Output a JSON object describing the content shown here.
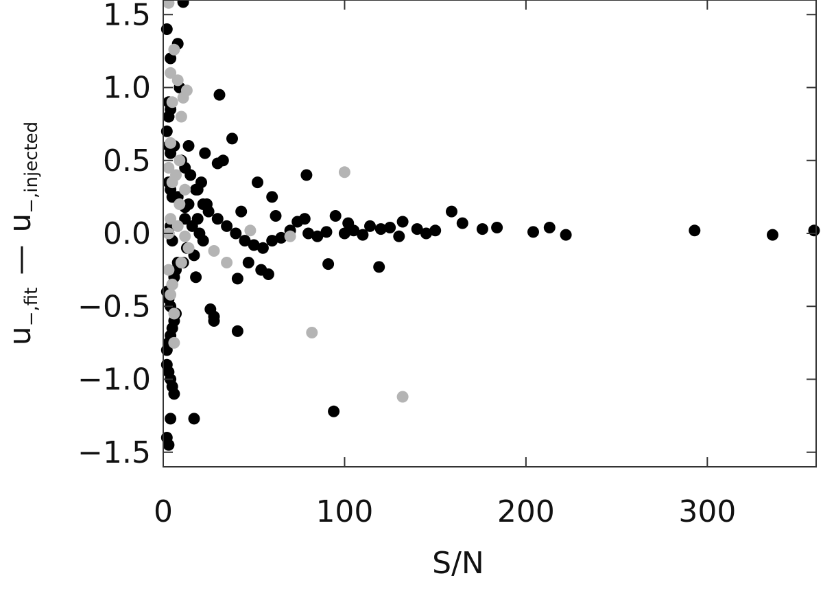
{
  "chart_data": {
    "type": "scatter",
    "title": "",
    "xlabel": "S/N",
    "ylabel": {
      "fit_prefix": "u",
      "fit_sub": "−,fit",
      "minus": "—",
      "inj_prefix": "u",
      "inj_sub": "−,injected"
    },
    "xlim": [
      0,
      360
    ],
    "ylim": [
      -1.6,
      1.6
    ],
    "xticks": [
      0,
      100,
      200,
      300
    ],
    "xtick_labels": [
      "0",
      "100",
      "200",
      "300"
    ],
    "yticks": [
      -1.5,
      -1.0,
      -0.5,
      0.0,
      0.5,
      1.0,
      1.5
    ],
    "ytick_labels": [
      "−1.5",
      "−1.0",
      "−0.5",
      "0.0",
      "0.5",
      "1.0",
      "1.5"
    ],
    "grid": false,
    "colors": {
      "black_series": "#000000",
      "grey_series": "#b4b4b4"
    },
    "series": [
      {
        "color": "black",
        "x": [
          11,
          2,
          8,
          4,
          9,
          3,
          31,
          14,
          38,
          33,
          30,
          23,
          21,
          12,
          52,
          60,
          79,
          12,
          24,
          19,
          8,
          43,
          78,
          62,
          74,
          95,
          102,
          114,
          120,
          125,
          132,
          140,
          150,
          159,
          165,
          176,
          184,
          204,
          213,
          222,
          293,
          336,
          359,
          41,
          47,
          54,
          58,
          91,
          119,
          26,
          28,
          41,
          28,
          4,
          94,
          17,
          3,
          2,
          6,
          10,
          15,
          18,
          22,
          25,
          30,
          35,
          40,
          45,
          50,
          55,
          60,
          65,
          70,
          80,
          85,
          90,
          100,
          105,
          110,
          130,
          145,
          2,
          3,
          4,
          5,
          6,
          7,
          2,
          3,
          4,
          5,
          6,
          2,
          3,
          4,
          5,
          6,
          7,
          8,
          3,
          4,
          5,
          3,
          4,
          5,
          3,
          4,
          3,
          4,
          2,
          3,
          12,
          16,
          20,
          13,
          17,
          22,
          14,
          19,
          11,
          18
        ],
        "y": [
          1.6,
          1.4,
          1.3,
          1.2,
          1.0,
          0.8,
          0.95,
          0.6,
          0.65,
          0.5,
          0.48,
          0.55,
          0.35,
          0.45,
          0.35,
          0.25,
          0.4,
          0.18,
          0.2,
          0.3,
          0.25,
          0.15,
          0.1,
          0.12,
          0.08,
          0.12,
          0.07,
          0.05,
          0.03,
          0.04,
          0.08,
          0.03,
          0.02,
          0.15,
          0.07,
          0.03,
          0.04,
          0.01,
          0.04,
          -0.01,
          0.02,
          -0.01,
          0.02,
          -0.31,
          -0.2,
          -0.25,
          -0.28,
          -0.21,
          -0.23,
          -0.52,
          -0.57,
          -0.67,
          -0.6,
          -1.27,
          -1.22,
          -1.27,
          0.8,
          0.7,
          0.6,
          0.5,
          0.4,
          0.3,
          0.2,
          0.15,
          0.1,
          0.05,
          0.0,
          -0.05,
          -0.08,
          -0.1,
          -0.05,
          -0.03,
          0.02,
          0.0,
          -0.02,
          0.01,
          0.0,
          0.02,
          -0.01,
          -0.02,
          0.0,
          -0.8,
          -0.75,
          -0.7,
          -0.65,
          -0.6,
          -0.55,
          -0.9,
          -0.95,
          -1.0,
          -1.05,
          -1.1,
          -0.4,
          -0.45,
          -0.5,
          -0.35,
          -0.3,
          -0.25,
          -0.2,
          0.0,
          0.05,
          -0.05,
          0.35,
          0.3,
          0.25,
          0.6,
          0.55,
          0.9,
          0.85,
          -1.4,
          -1.45,
          0.1,
          0.05,
          0.0,
          -0.1,
          -0.15,
          -0.05,
          0.2,
          0.1,
          -0.2,
          -0.3
        ]
      },
      {
        "color": "grey",
        "x": [
          3,
          6,
          4,
          8,
          11,
          13,
          5,
          10,
          4,
          9,
          3,
          7,
          5,
          12,
          9,
          4,
          3,
          48,
          70,
          35,
          28,
          100,
          82,
          132,
          3,
          5,
          4,
          6,
          6,
          10,
          14,
          8,
          12
        ],
        "y": [
          1.58,
          1.26,
          1.1,
          1.05,
          0.93,
          0.98,
          0.9,
          0.8,
          0.62,
          0.5,
          0.45,
          0.4,
          0.35,
          0.3,
          0.2,
          0.1,
          0.0,
          0.02,
          -0.02,
          -0.2,
          -0.12,
          0.42,
          -0.68,
          -1.12,
          -0.25,
          -0.35,
          -0.42,
          -0.55,
          -0.75,
          -0.2,
          -0.1,
          0.05,
          -0.02
        ]
      }
    ]
  }
}
